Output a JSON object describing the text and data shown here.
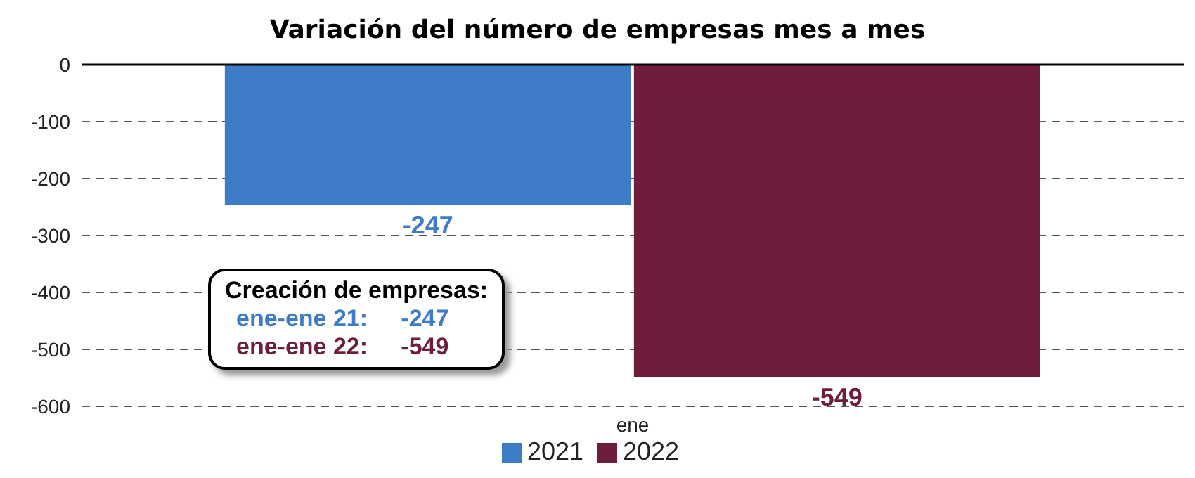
{
  "chart_data": {
    "type": "bar",
    "title": "Variación del número de empresas mes a mes",
    "categories": [
      "ene"
    ],
    "series": [
      {
        "name": "2021",
        "color": "#3f7cc8",
        "values": [
          -247
        ]
      },
      {
        "name": "2022",
        "color": "#6f1d3d",
        "values": [
          -549
        ]
      }
    ],
    "ylim": [
      -600,
      0
    ],
    "yticks": [
      -600,
      -500,
      -400,
      -300,
      -200,
      -100,
      0
    ],
    "grid": "y",
    "legend": "bottom",
    "data_labels": true,
    "annotations": [
      "Creación de empresas:",
      "ene-ene 21:     -247",
      "ene-ene 22:     -549"
    ]
  }
}
